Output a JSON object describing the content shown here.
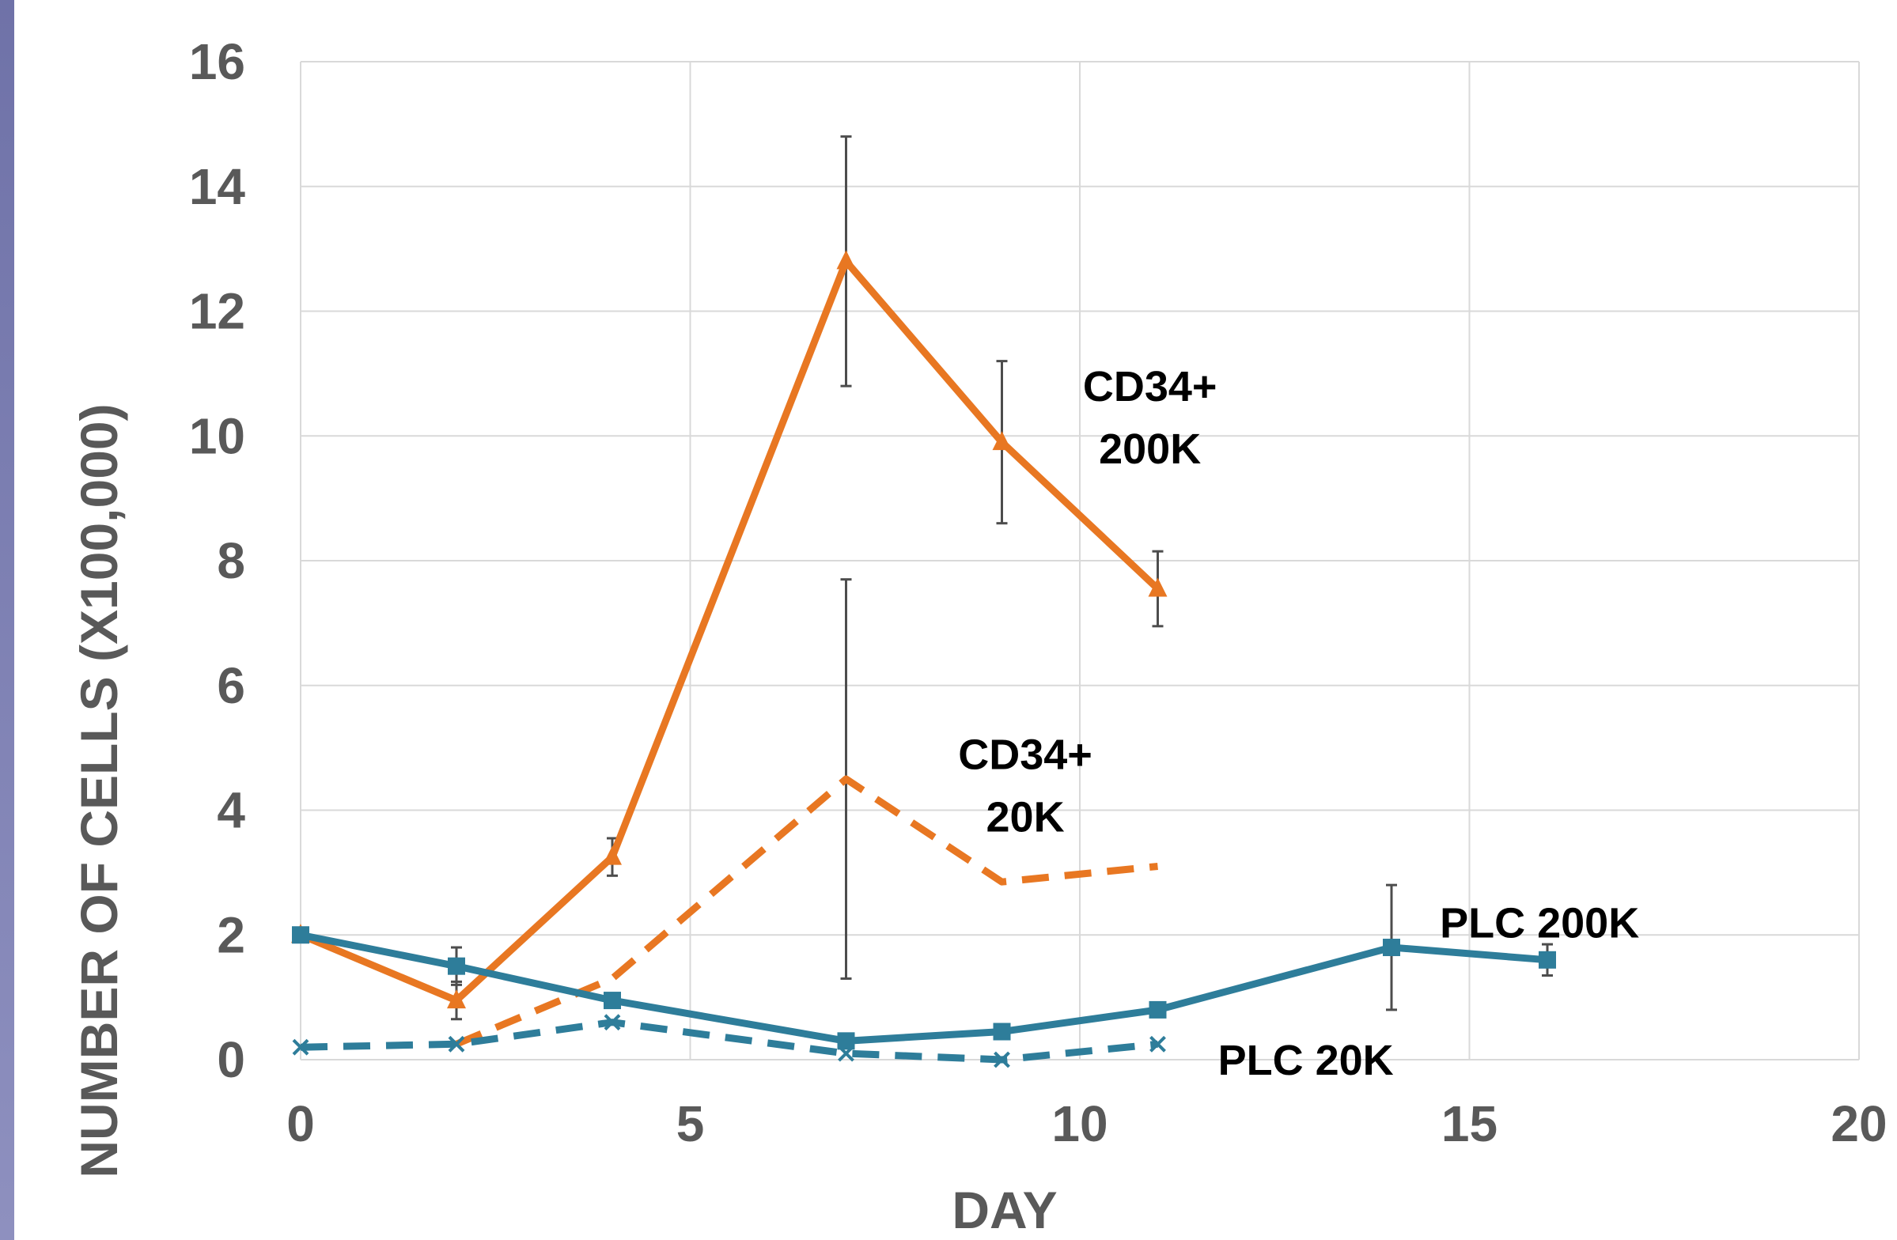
{
  "chart_data": {
    "type": "line",
    "xlabel": "DAY",
    "ylabel": "NUMBER OF CELLS (X100,000)",
    "xlim": [
      0,
      20
    ],
    "ylim": [
      0,
      16
    ],
    "x_ticks": [
      0,
      5,
      10,
      15,
      20
    ],
    "y_ticks": [
      0,
      2,
      4,
      6,
      8,
      10,
      12,
      14,
      16
    ],
    "grid": true,
    "legend": "none",
    "series": [
      {
        "name": "CD34+ 200K",
        "color": "#e87722",
        "style": "solid",
        "marker": "triangle",
        "x": [
          0,
          2,
          4,
          7,
          9,
          11
        ],
        "y": [
          2.0,
          0.95,
          3.25,
          12.8,
          9.9,
          7.55
        ],
        "err": [
          0,
          0.3,
          0.3,
          2.0,
          1.3,
          0.6
        ]
      },
      {
        "name": "CD34+ 20K",
        "color": "#e87722",
        "style": "dashed",
        "marker": "none",
        "x": [
          2,
          4,
          7,
          9,
          11
        ],
        "y": [
          0.25,
          1.3,
          4.5,
          2.85,
          3.1
        ],
        "err": [
          0,
          0,
          3.2,
          0,
          0
        ]
      },
      {
        "name": "PLC 200K",
        "color": "#2e7d9a",
        "style": "solid",
        "marker": "square",
        "x": [
          0,
          2,
          4,
          7,
          9,
          11,
          14,
          16
        ],
        "y": [
          2.0,
          1.5,
          0.95,
          0.3,
          0.45,
          0.8,
          1.8,
          1.6
        ],
        "err": [
          0,
          0.3,
          0,
          0,
          0,
          0,
          1.0,
          0.25
        ]
      },
      {
        "name": "PLC 20K",
        "color": "#2e7d9a",
        "style": "dashed",
        "marker": "x",
        "x": [
          0,
          2,
          4,
          7,
          9,
          11
        ],
        "y": [
          0.2,
          0.25,
          0.6,
          0.1,
          0.0,
          0.25
        ],
        "err": [
          0,
          0,
          0,
          0,
          0,
          0
        ]
      }
    ],
    "annotations": [
      {
        "text": "CD34+",
        "x": 10.9,
        "y": 10.8
      },
      {
        "text": "200K",
        "x": 10.9,
        "y": 9.8
      },
      {
        "text": "CD34+",
        "x": 9.3,
        "y": 4.9
      },
      {
        "text": "20K",
        "x": 9.3,
        "y": 3.9
      },
      {
        "text": "PLC 200K",
        "x": 15.9,
        "y": 2.2
      },
      {
        "text": "PLC 20K",
        "x": 12.9,
        "y": 0.0
      }
    ]
  }
}
